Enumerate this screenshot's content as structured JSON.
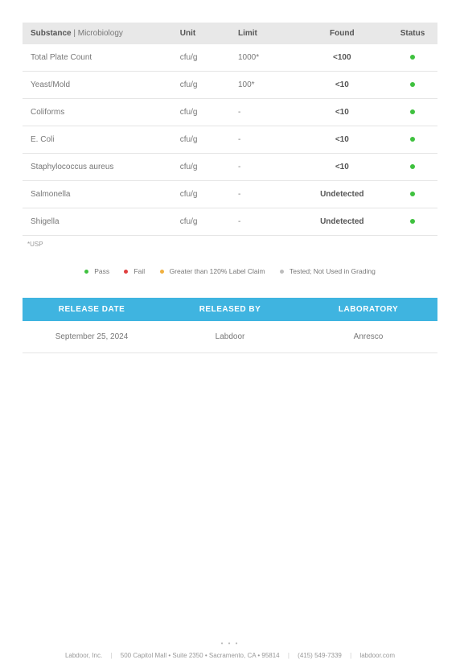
{
  "colors": {
    "pass": "#3fc13f",
    "fail": "#e03f3f",
    "over": "#f0b03f",
    "tested": "#bdbdbd",
    "banner": "#3fb4e0"
  },
  "microTable": {
    "headers": {
      "substance": "Substance",
      "category": "Microbiology",
      "unit": "Unit",
      "limit": "Limit",
      "found": "Found",
      "status": "Status"
    },
    "rows": [
      {
        "name": "Total Plate Count",
        "unit": "cfu/g",
        "limit": "1000*",
        "found": "<100",
        "status": "pass"
      },
      {
        "name": "Yeast/Mold",
        "unit": "cfu/g",
        "limit": "100*",
        "found": "<10",
        "status": "pass"
      },
      {
        "name": "Coliforms",
        "unit": "cfu/g",
        "limit": "-",
        "found": "<10",
        "status": "pass"
      },
      {
        "name": "E. Coli",
        "unit": "cfu/g",
        "limit": "-",
        "found": "<10",
        "status": "pass"
      },
      {
        "name": "Staphylococcus aureus",
        "unit": "cfu/g",
        "limit": "-",
        "found": "<10",
        "status": "pass"
      },
      {
        "name": "Salmonella",
        "unit": "cfu/g",
        "limit": "-",
        "found": "Undetected",
        "status": "pass"
      },
      {
        "name": "Shigella",
        "unit": "cfu/g",
        "limit": "-",
        "found": "Undetected",
        "status": "pass"
      }
    ],
    "footnote": "*USP"
  },
  "legend": {
    "pass": "Pass",
    "fail": "Fail",
    "over": "Greater than 120% Label Claim",
    "tested": "Tested; Not Used in Grading"
  },
  "release": {
    "headers": {
      "date": "RELEASE DATE",
      "by": "RELEASED BY",
      "lab": "LABORATORY"
    },
    "values": {
      "date": "September 25, 2024",
      "by": "Labdoor",
      "lab": "Anresco"
    }
  },
  "footer": {
    "company": "Labdoor, Inc.",
    "address": "500 Capitol Mall • Suite 2350 • Sacramento, CA • 95814",
    "phone": "(415) 549-7339",
    "site": "labdoor.com"
  }
}
